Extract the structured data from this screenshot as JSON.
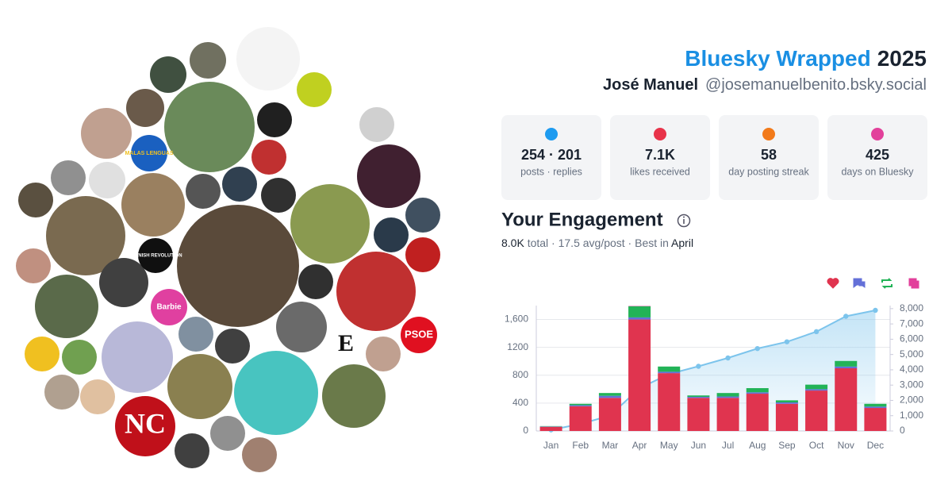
{
  "header": {
    "title": "Bluesky Wrapped",
    "year": "2025",
    "name": "José Manuel",
    "handle": "@josemanuelbenito.bsky.social"
  },
  "collage": {
    "labels": [
      "MALAS LENGUAS",
      "SPANISH REVOLUTION",
      "Barbie",
      "PSOE",
      "E",
      "NC"
    ]
  },
  "stats": [
    {
      "value": "254 · 201",
      "label": "posts · replies"
    },
    {
      "value": "7.1K",
      "label": "likes received"
    },
    {
      "value": "58",
      "label": "day posting streak"
    },
    {
      "value": "425",
      "label": "days on Bluesky"
    }
  ],
  "engagement": {
    "title": "Your Engagement",
    "total": "8.0K",
    "text": "total · 17.5 avg/post · Best in",
    "best": "April"
  },
  "chart_data": {
    "type": "bar",
    "categories": [
      "Jan",
      "Feb",
      "Mar",
      "Apr",
      "May",
      "Jun",
      "Jul",
      "Aug",
      "Sep",
      "Oct",
      "Nov",
      "Dec"
    ],
    "series": [
      {
        "color": "#e0344f",
        "values": [
          60,
          355,
          475,
          1600,
          830,
          475,
          475,
          535,
          390,
          580,
          900,
          330
        ]
      },
      {
        "color": "#6470d8",
        "values": [
          5,
          15,
          30,
          30,
          20,
          15,
          20,
          20,
          20,
          20,
          25,
          20
        ]
      },
      {
        "color": "#22b357",
        "values": [
          5,
          20,
          40,
          160,
          75,
          20,
          50,
          60,
          30,
          65,
          80,
          40
        ]
      },
      {
        "color": "#e2409b",
        "values": [
          0,
          0,
          0,
          5,
          0,
          0,
          0,
          0,
          0,
          0,
          0,
          0
        ]
      },
      {
        "type": "line",
        "axis": "y2",
        "color": "#7cc4ec",
        "values": [
          70,
          460,
          1005,
          2795,
          3720,
          4230,
          4775,
          5390,
          5830,
          6495,
          7500,
          7890
        ]
      }
    ],
    "ylim": [
      0,
      1800
    ],
    "yticks": [
      0,
      400,
      800,
      1200,
      {
        "value": 1600,
        "label": "1,600"
      }
    ],
    "y2lim": [
      0,
      8200
    ],
    "y2ticks": [
      0,
      {
        "value": 1000,
        "label": "1,000"
      },
      {
        "value": 2000,
        "label": "2,000"
      },
      {
        "value": 3000,
        "label": "3,000"
      },
      {
        "value": 4000,
        "label": "4,000"
      },
      {
        "value": 5000,
        "label": "5,000"
      },
      {
        "value": 6000,
        "label": "6,000"
      },
      {
        "value": 7000,
        "label": "7,000"
      },
      {
        "value": 8000,
        "label": "8,000"
      }
    ],
    "grid": true
  }
}
